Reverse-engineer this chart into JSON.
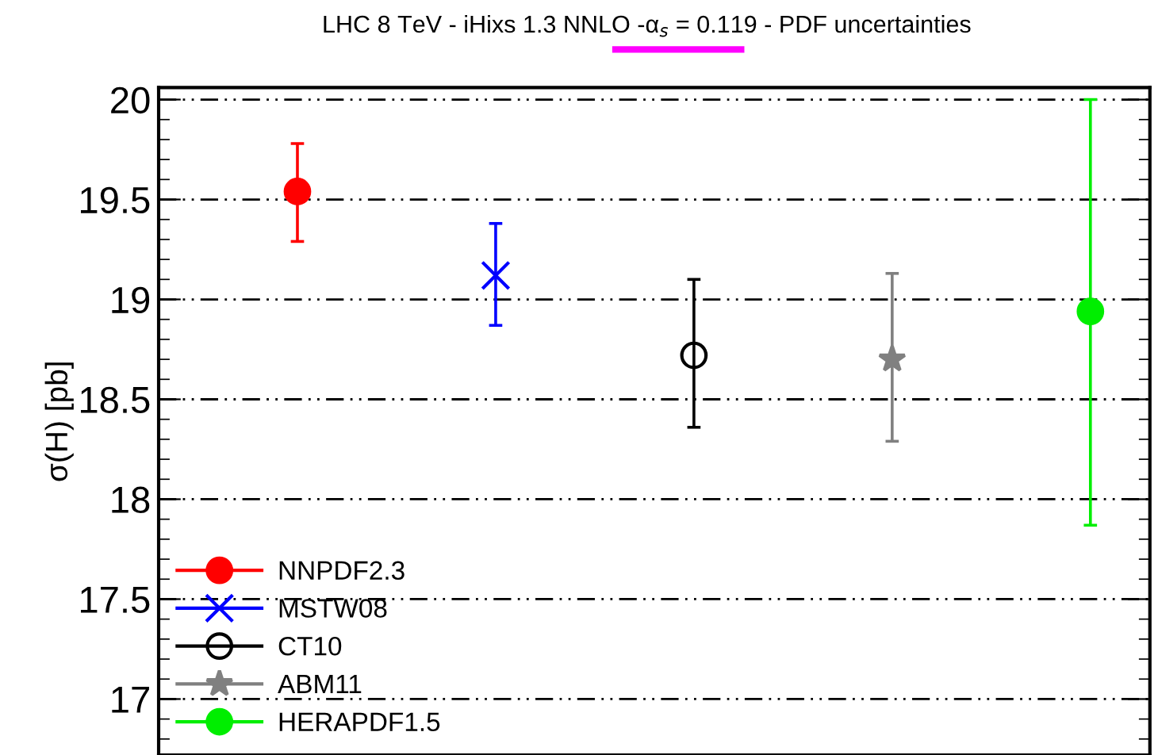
{
  "chart_data": {
    "type": "scatter",
    "title": "LHC 8 TeV - iHixs 1.3 NNLO -α$_{s}$ = 0.119 - PDF uncertainties",
    "ylabel": "σ(H) [pb]",
    "categories": [
      null,
      null,
      null,
      null,
      null
    ],
    "series": [
      {
        "name": "NNPDF2.3",
        "color": "#ff0000",
        "marker": "circle",
        "values": [
          19.54,
          null,
          null,
          null,
          null
        ],
        "errors": [
          [
            19.29,
            19.78
          ],
          null,
          null,
          null,
          null
        ]
      },
      {
        "name": "MSTW08",
        "color": "#0000ff",
        "marker": "cross",
        "values": [
          null,
          19.12,
          null,
          null,
          null
        ],
        "errors": [
          null,
          [
            18.87,
            19.38
          ],
          null,
          null,
          null
        ]
      },
      {
        "name": "CT10",
        "color": "#000000",
        "marker": "circle",
        "values": [
          null,
          null,
          18.72,
          null,
          null
        ],
        "errors": [
          null,
          null,
          [
            18.36,
            19.1
          ],
          null,
          null
        ]
      },
      {
        "name": "ABM11",
        "color": "#808080",
        "marker": "star",
        "values": [
          null,
          null,
          null,
          18.7,
          null
        ],
        "errors": [
          null,
          null,
          null,
          [
            18.29,
            19.13
          ],
          null
        ]
      },
      {
        "name": "HERAPDF1.5",
        "color": "#00ee00",
        "marker": "circle",
        "values": [
          null,
          null,
          null,
          null,
          18.94
        ],
        "errors": [
          null,
          null,
          null,
          null,
          [
            17.87,
            20.0
          ]
        ]
      }
    ],
    "ylim": [
      16.72,
      20.06
    ],
    "yticks": [
      17,
      17.5,
      18,
      18.5,
      19,
      19.5,
      20
    ],
    "tick_labels": "y",
    "grid": "y",
    "legend": "bottom left",
    "line_style": "solid"
  }
}
